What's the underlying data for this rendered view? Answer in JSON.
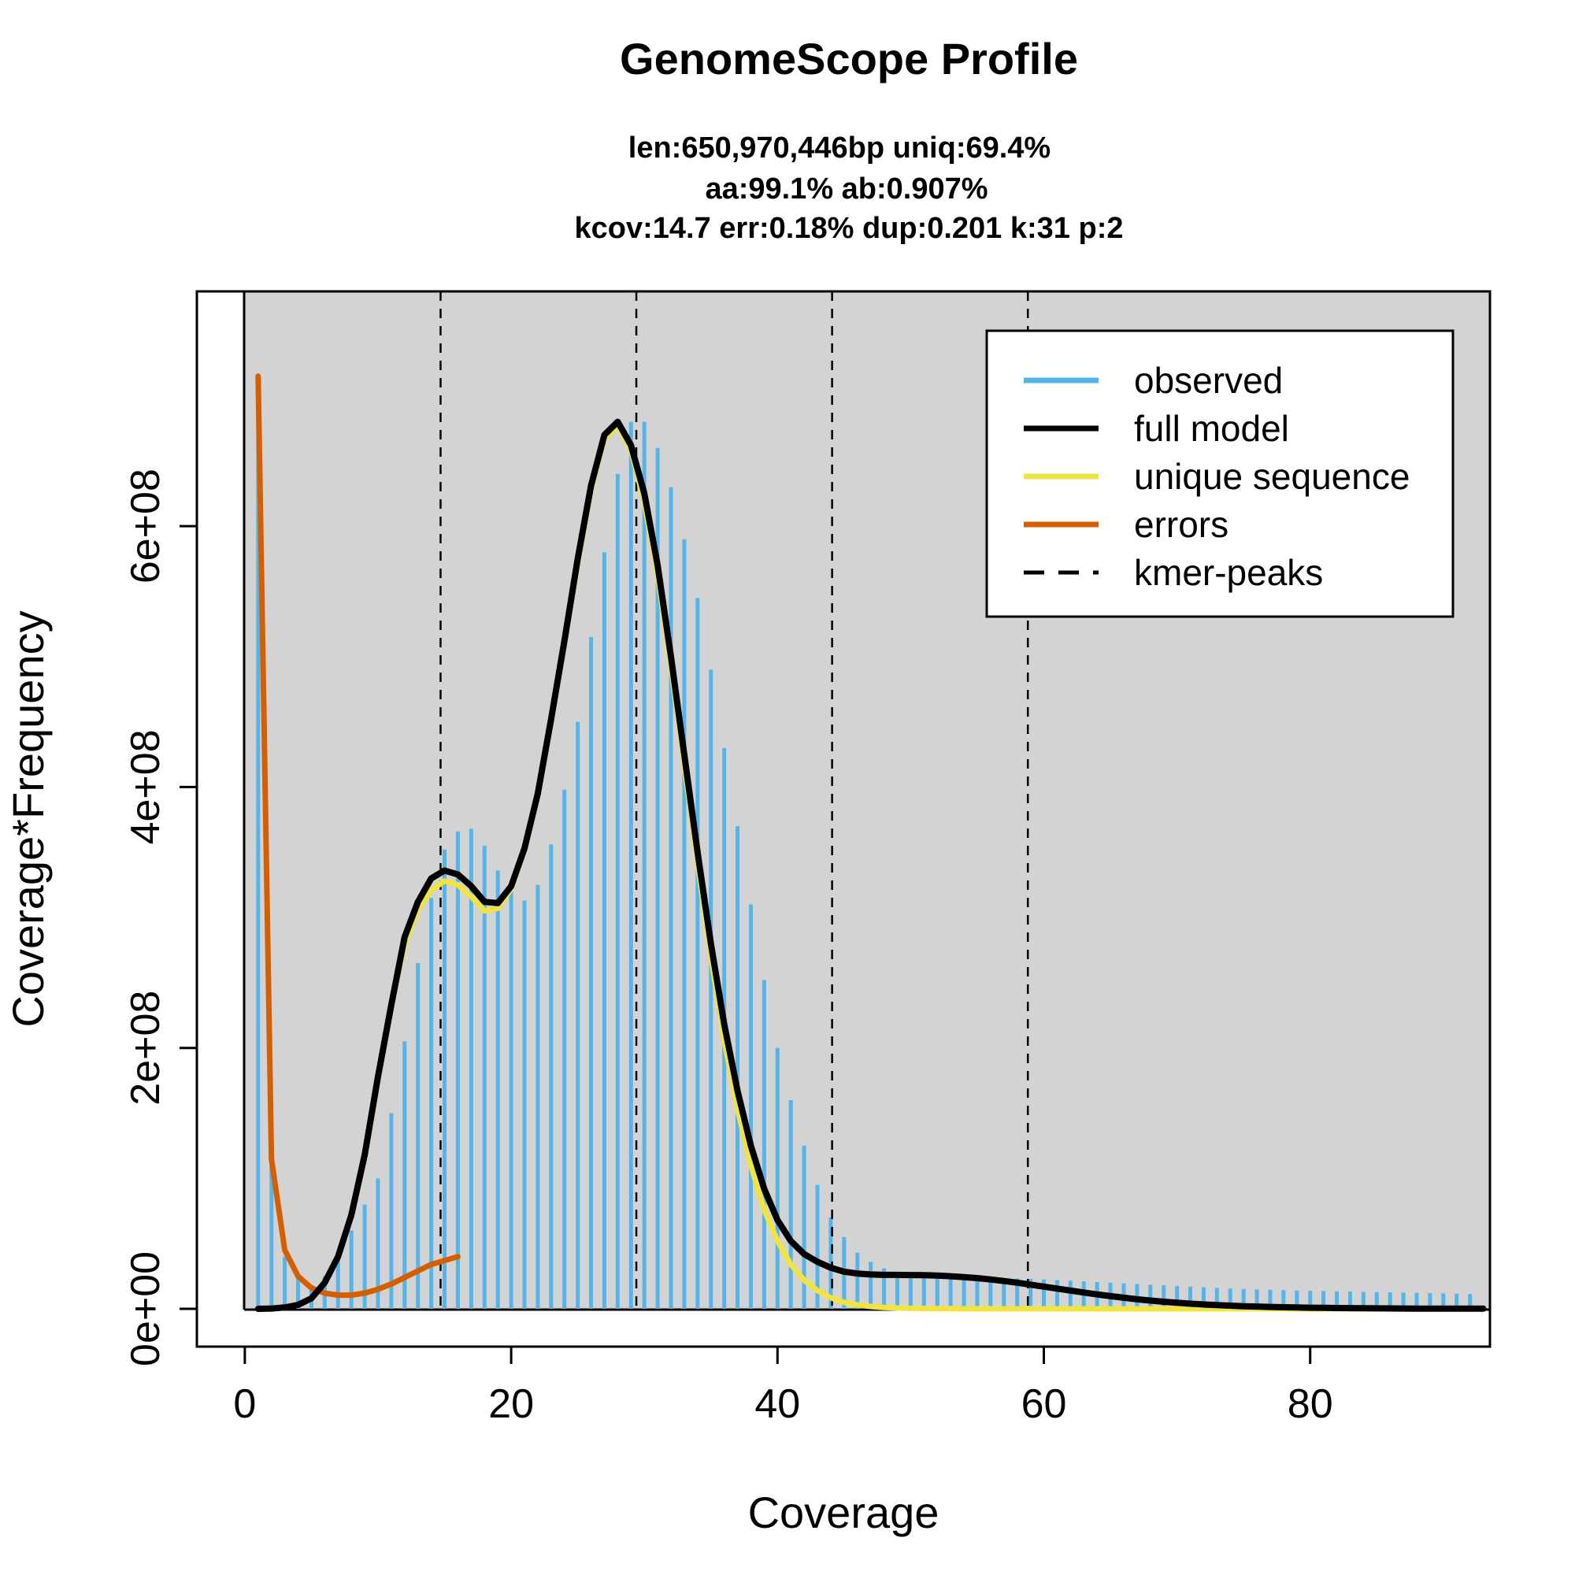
{
  "chart_data": {
    "type": "line",
    "title": "GenomeScope Profile",
    "subtitle_lines": [
      "len:650,970,446bp uniq:69.4%",
      "aa:99.1% ab:0.907%",
      "kcov:14.7 err:0.18%  dup:0.201  k:31 p:2"
    ],
    "xlabel": "Coverage",
    "ylabel": "Coverage*Frequency",
    "xlim": [
      -3.6,
      93.5
    ],
    "ylim": [
      -29000000,
      780000000
    ],
    "x_ticks": [
      0,
      20,
      40,
      60,
      80
    ],
    "y_ticks": [
      0,
      200000000,
      400000000,
      600000000
    ],
    "y_tick_labels": [
      "0e+00",
      "2e+08",
      "4e+08",
      "6e+08"
    ],
    "grid": false,
    "plot_background": "#d3d3d3",
    "legend_position": "top-right",
    "legend": [
      {
        "label": "observed",
        "color": "#56b4e9",
        "style": "solid"
      },
      {
        "label": "full model",
        "color": "#000000",
        "style": "solid"
      },
      {
        "label": "unique sequence",
        "color": "#f0e442",
        "style": "solid"
      },
      {
        "label": "errors",
        "color": "#d55e00",
        "style": "solid"
      },
      {
        "label": "kmer-peaks",
        "color": "#000000",
        "style": "dashed"
      }
    ],
    "kmer_peaks": [
      14.7,
      29.4,
      44.1,
      58.8
    ],
    "model_start_x": 1,
    "series": [
      {
        "name": "observed",
        "type": "bar",
        "color": "#56b4e9",
        "x_start": 1,
        "x_step": 1,
        "values": [
          700000000,
          110000000,
          40000000,
          25000000,
          18000000,
          25000000,
          38000000,
          60000000,
          80000000,
          100000000,
          150000000,
          205000000,
          265000000,
          315000000,
          352000000,
          366000000,
          368000000,
          355000000,
          336000000,
          320000000,
          313000000,
          325000000,
          356000000,
          398000000,
          450000000,
          515000000,
          580000000,
          640000000,
          680000000,
          680000000,
          660000000,
          630000000,
          590000000,
          545000000,
          490000000,
          430000000,
          370000000,
          310000000,
          252000000,
          200000000,
          160000000,
          125000000,
          95000000,
          70000000,
          55000000,
          43000000,
          36000000,
          31000000,
          28000000,
          26000000,
          25000000,
          24500000,
          24300000,
          24100000,
          24000000,
          23800000,
          23600000,
          23300000,
          23000000,
          22500000,
          22000000,
          21500000,
          21000000,
          20500000,
          20000000,
          19500000,
          19000000,
          18500000,
          18000000,
          17500000,
          17000000,
          16500000,
          16000000,
          15500000,
          15200000,
          14900000,
          14600000,
          14300000,
          14000000,
          13800000,
          13600000,
          13400000,
          13200000,
          13000000,
          12800000,
          12600000,
          12400000,
          12200000,
          12000000,
          11800000,
          11600000,
          11400000
        ]
      },
      {
        "name": "full model",
        "type": "line",
        "color": "#000000",
        "x_start": 1,
        "x_step": 1,
        "values": [
          0,
          200000,
          1000000,
          3000000,
          8000000,
          20000000,
          40000000,
          72000000,
          118000000,
          178000000,
          233000000,
          285000000,
          312000000,
          330000000,
          336000000,
          333000000,
          324000000,
          312000000,
          311000000,
          324000000,
          353000000,
          395000000,
          452000000,
          512000000,
          575000000,
          631000000,
          670000000,
          680000000,
          662000000,
          625000000,
          570000000,
          500000000,
          425000000,
          350000000,
          280000000,
          218000000,
          167000000,
          125000000,
          92000000,
          68000000,
          52000000,
          42000000,
          36000000,
          31500000,
          28500000,
          27000000,
          26300000,
          26000000,
          26000000,
          25900000,
          25800000,
          25500000,
          25000000,
          24300000,
          23500000,
          22500000,
          21300000,
          20000000,
          18500000,
          17000000,
          15500000,
          14000000,
          12500000,
          11000000,
          9700000,
          8500000,
          7300000,
          6300000,
          5400000,
          4600000,
          3900000,
          3300000,
          2800000,
          2400000,
          2000000,
          1700000,
          1400000,
          1200000,
          1000000,
          850000,
          700000,
          600000,
          500000,
          400000,
          330000,
          280000,
          230000,
          190000,
          160000,
          130000,
          110000,
          90000,
          75000
        ]
      },
      {
        "name": "unique sequence",
        "type": "line",
        "color": "#f0e442",
        "x_start": 1,
        "x_step": 1,
        "values": [
          0,
          200000,
          1000000,
          3000000,
          8000000,
          20000000,
          40000000,
          72000000,
          118000000,
          178000000,
          233000000,
          279000000,
          306000000,
          321000000,
          328000000,
          325000000,
          316000000,
          305000000,
          307000000,
          322000000,
          352000000,
          394000000,
          450000000,
          510000000,
          572000000,
          628000000,
          667000000,
          677000000,
          658000000,
          618000000,
          562000000,
          492000000,
          417000000,
          341000000,
          270000000,
          206000000,
          153000000,
          110000000,
          76000000,
          52000000,
          34000000,
          22000000,
          14000000,
          8500000,
          5000000,
          3000000,
          1800000,
          1000000,
          600000,
          350000,
          200000,
          120000,
          70000,
          40000,
          20000,
          10000,
          5000,
          2000,
          1000,
          500,
          200,
          100,
          50,
          20,
          10,
          5,
          2,
          1,
          0,
          0,
          0,
          0,
          0,
          0,
          0,
          0,
          0,
          0,
          0,
          0,
          0,
          0,
          0,
          0,
          0,
          0,
          0,
          0,
          0,
          0,
          0,
          0,
          0
        ]
      },
      {
        "name": "errors",
        "type": "line",
        "color": "#d55e00",
        "x_start": 1,
        "x_step": 1,
        "values": [
          715000000,
          115000000,
          45000000,
          25000000,
          16000000,
          12000000,
          10500000,
          10500000,
          12000000,
          15000000,
          19000000,
          24000000,
          29000000,
          34000000,
          37000000,
          40000000
        ]
      }
    ]
  }
}
